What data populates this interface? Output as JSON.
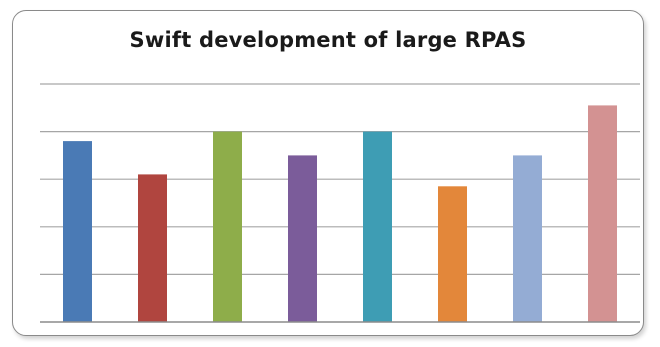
{
  "chart_data": {
    "type": "bar",
    "title": "Swift development of large RPAS",
    "xlabel": "",
    "ylabel": "",
    "ylim": [
      0,
      5
    ],
    "grid": true,
    "legend": "none",
    "categories": [
      "",
      "",
      "",
      "",
      "",
      "",
      "",
      ""
    ],
    "values": [
      3.8,
      3.1,
      4.0,
      3.5,
      4.0,
      2.85,
      3.5,
      4.55
    ],
    "colors": [
      "#4a7ab5",
      "#b0453f",
      "#8ead4a",
      "#7b5c9a",
      "#3e9db4",
      "#e3873a",
      "#94acd4",
      "#d39292"
    ],
    "gridline_color": "#a6a6a6",
    "axis_color": "#8c8c8c"
  }
}
